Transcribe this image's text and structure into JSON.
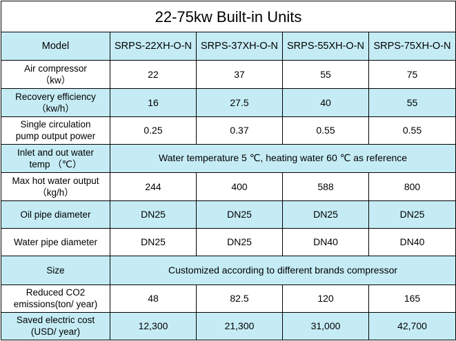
{
  "title": "22-75kw Built-in Units",
  "header": {
    "label": "Model",
    "models": [
      "SRPS-22XH-O-N",
      "SRPS-37XH-O-N",
      "SRPS-55XH-O-N",
      "SRPS-75XH-O-N"
    ]
  },
  "rows": [
    {
      "label_line1": "Air compressor",
      "label_line2": "（kw）",
      "values": [
        "22",
        "37",
        "55",
        "75"
      ]
    },
    {
      "label_line1": "Recovery efficiency",
      "label_line2": "（kw/h）",
      "values": [
        "16",
        "27.5",
        "40",
        "55"
      ]
    },
    {
      "label_line1": "Single circulation",
      "label_line2": "pump output power",
      "values": [
        "0.25",
        "0.37",
        "0.55",
        "0.55"
      ]
    },
    {
      "label_line1": "Inlet and out water",
      "label_line2": "temp （℃）",
      "merged": "Water temperature 5 ℃, heating water 60 ℃ as reference"
    },
    {
      "label_line1": "Max hot water output",
      "label_line2": "（kg/h）",
      "values": [
        "244",
        "400",
        "588",
        "800"
      ]
    },
    {
      "label_line1": "Oil pipe diameter",
      "label_line2": "",
      "values": [
        "DN25",
        "DN25",
        "DN25",
        "DN25"
      ]
    },
    {
      "label_line1": "Water pipe diameter",
      "label_line2": "",
      "values": [
        "DN25",
        "DN25",
        "DN40",
        "DN40"
      ]
    },
    {
      "label_line1": "Size",
      "label_line2": "",
      "merged": "Customized according to different brands compressor"
    },
    {
      "label_line1": "Reduced CO2",
      "label_line2": "emissions(ton/ year)",
      "values": [
        "48",
        "82.5",
        "120",
        "165"
      ]
    },
    {
      "label_line1": "Saved electric cost",
      "label_line2": "(USD/ year)",
      "values": [
        "12,300",
        "21,300",
        "31,000",
        "42,700"
      ]
    }
  ]
}
